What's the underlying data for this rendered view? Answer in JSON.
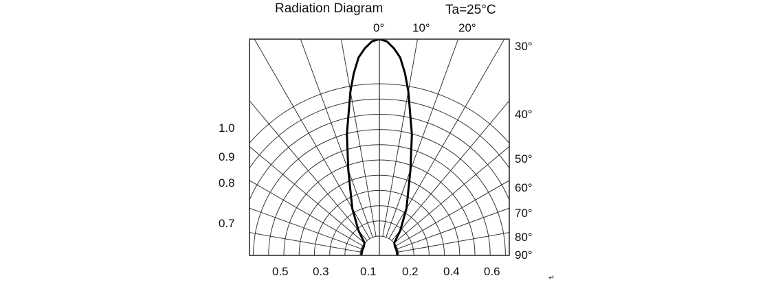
{
  "chart_data": {
    "type": "polar",
    "title": "Radiation Diagram",
    "condition": "Ta=25°C",
    "top_angle_labels": [
      "0°",
      "10°",
      "20°"
    ],
    "right_angle_labels": [
      "30°",
      "40°",
      "50°",
      "60°",
      "70°",
      "80°",
      "90°"
    ],
    "left_radial_labels": [
      "1.0",
      "0.9",
      "0.8",
      "0.7"
    ],
    "bottom_labels": [
      "0.5",
      "0.3",
      "0.1",
      "0.2",
      "0.4",
      "0.6"
    ],
    "grid_angle_step_deg": 10,
    "grid_rings": 10,
    "series": [
      {
        "angles_deg": [
          0,
          2,
          4,
          6,
          8,
          10,
          15,
          20,
          30,
          40,
          50,
          60,
          70,
          80,
          90
        ],
        "relative_intensity": [
          1.0,
          0.99,
          0.96,
          0.92,
          0.85,
          0.77,
          0.58,
          0.42,
          0.25,
          0.15,
          0.09,
          0.05,
          0.03,
          0.02,
          0.015
        ]
      }
    ],
    "line_color": "#000000",
    "grid_color": "#333333"
  },
  "footer": {
    "return_mark": "↵"
  }
}
